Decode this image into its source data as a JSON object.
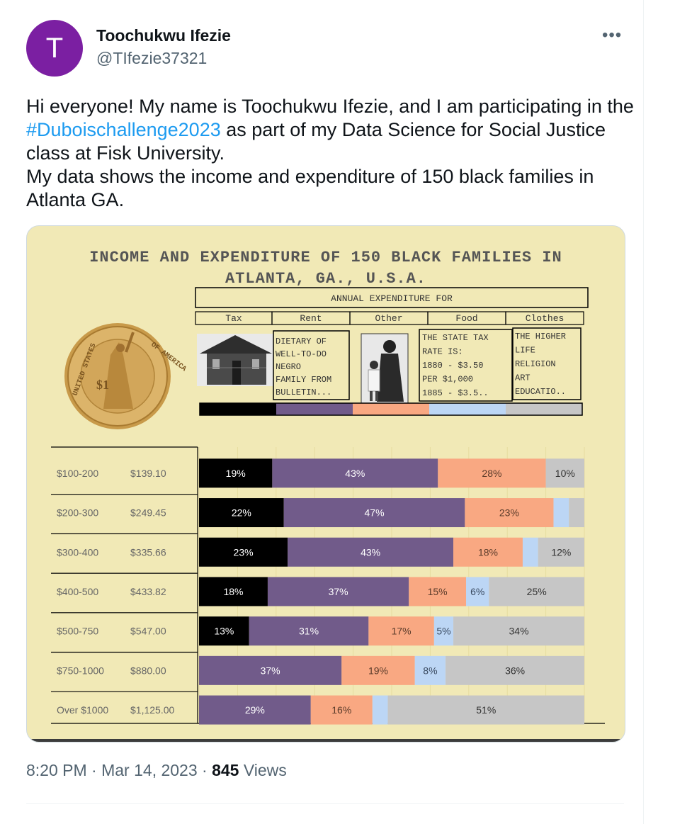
{
  "author": {
    "avatar_letter": "T",
    "avatar_color": "#7b1fa2",
    "name": "Toochukwu Ifezie",
    "handle": "@TIfezie37321"
  },
  "tweet": {
    "text_before_hashtag": "Hi everyone! My name is Toochukwu Ifezie, and I am participating in the ",
    "hashtag": "#Duboischallenge2023",
    "text_after_hashtag": " as part of my Data Science for Social Justice class at Fisk University.",
    "line2": "My data shows the income and expenditure of 150 black families in Atlanta GA."
  },
  "more_icon": "more-horizontal-icon",
  "meta": {
    "time": "8:20 PM",
    "separator": "·",
    "date": "Mar 14, 2023",
    "views_count": "845",
    "views_label": "Views"
  },
  "chart_data": {
    "type": "bar",
    "orientation": "horizontal-stacked-100",
    "title_line1": "INCOME AND EXPENDITURE OF 150 BLACK FAMILIES IN",
    "title_line2": "ATLANTA, GA., U.S.A.",
    "header_label": "ANNUAL EXPENDITURE FOR",
    "categories_header": [
      "Tax",
      "Rent",
      "Other",
      "Food",
      "Clothes"
    ],
    "category_colors": [
      "#000000",
      "#715b8a",
      "#f9a882",
      "#bcd6f5",
      "#c6c6c6"
    ],
    "side_notes": {
      "rent_note": [
        "DIETARY OF",
        "WELL-TO-DO",
        "NEGRO",
        "FAMILY FROM",
        "BULLETIN..."
      ],
      "food_note": [
        "THE STATE TAX",
        "RATE IS:",
        "1880 - $3.50",
        "PER $1,000",
        "1885 - $3.5.."
      ],
      "clothes_note": [
        "THE HIGHER",
        "LIFE",
        "RELIGION",
        "ART",
        "EDUCATIO.."
      ]
    },
    "coin_text": {
      "top": "OF AMERICA",
      "left": "UNITED STATES",
      "value": "$1"
    },
    "series_order": [
      "Rent",
      "Food",
      "Clothes",
      "Tax",
      "Other"
    ],
    "rows": [
      {
        "class": "$100-200",
        "average": "$139.10",
        "values": [
          19,
          43,
          28,
          0,
          10
        ],
        "labels": [
          "19%",
          "43%",
          "28%",
          "",
          "10%"
        ]
      },
      {
        "class": "$200-300",
        "average": "$249.45",
        "values": [
          22,
          47,
          23,
          4,
          4
        ],
        "labels": [
          "22%",
          "47%",
          "23%",
          "",
          ""
        ]
      },
      {
        "class": "$300-400",
        "average": "$335.66",
        "values": [
          23,
          43,
          18,
          4,
          12
        ],
        "labels": [
          "23%",
          "43%",
          "18%",
          "",
          "12%"
        ]
      },
      {
        "class": "$400-500",
        "average": "$433.82",
        "values": [
          18,
          37,
          15,
          6,
          25
        ],
        "labels": [
          "18%",
          "37%",
          "15%",
          "6%",
          "25%"
        ]
      },
      {
        "class": "$500-750",
        "average": "$547.00",
        "values": [
          13,
          31,
          17,
          5,
          34
        ],
        "labels": [
          "13%",
          "31%",
          "17%",
          "5%",
          "34%"
        ]
      },
      {
        "class": "$750-1000",
        "average": "$880.00",
        "values": [
          0,
          37,
          19,
          8,
          36
        ],
        "labels": [
          "",
          "37%",
          "19%",
          "8%",
          "36%"
        ]
      },
      {
        "class": "Over $1000",
        "average": "$1,125.00",
        "values": [
          0,
          29,
          16,
          4,
          51
        ],
        "labels": [
          "",
          "29%",
          "16%",
          "",
          "51%"
        ]
      }
    ],
    "text_colors": [
      "#ffffff",
      "#ffffff",
      "#5a3b2a",
      "#3a4a60",
      "#333333"
    ]
  }
}
